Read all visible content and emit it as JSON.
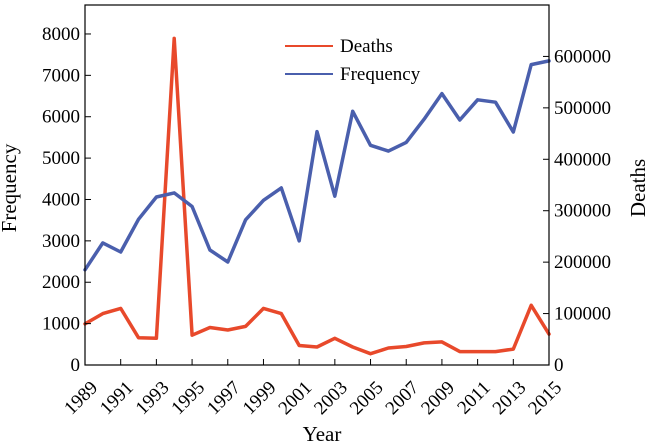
{
  "chart_data": {
    "type": "line",
    "xlabel": "Year",
    "ylabel_left": "Frequency",
    "ylabel_right": "Deaths",
    "x": [
      1989,
      1990,
      1991,
      1992,
      1993,
      1994,
      1995,
      1996,
      1997,
      1998,
      1999,
      2000,
      2001,
      2002,
      2003,
      2004,
      2005,
      2006,
      2007,
      2008,
      2009,
      2010,
      2011,
      2012,
      2013,
      2014,
      2015
    ],
    "x_ticks": [
      "1989",
      "1991",
      "1993",
      "1995",
      "1997",
      "1999",
      "2001",
      "2003",
      "2005",
      "2007",
      "2009",
      "2011",
      "2013",
      "2015"
    ],
    "xlim": [
      1989,
      2015
    ],
    "ylim_left": [
      0,
      8700
    ],
    "ylim_right": [
      0,
      700000
    ],
    "yticks_left": [
      "0",
      "1000",
      "2000",
      "3000",
      "4000",
      "5000",
      "6000",
      "7000",
      "8000"
    ],
    "yticks_right": [
      "0",
      "100000",
      "200000",
      "300000",
      "400000",
      "500000",
      "600000"
    ],
    "series": [
      {
        "name": "Deaths",
        "axis": "right",
        "color": "#e8492b",
        "values": [
          80000,
          100000,
          110000,
          53000,
          52000,
          635000,
          58000,
          73000,
          68000,
          75000,
          110000,
          100000,
          38000,
          35000,
          52000,
          35000,
          22000,
          33000,
          36000,
          43000,
          45000,
          26000,
          26000,
          26000,
          31000,
          116000,
          60000
        ]
      },
      {
        "name": "Frequency",
        "axis": "left",
        "color": "#4a5fad",
        "values": [
          2300,
          2950,
          2730,
          3520,
          4060,
          4160,
          3830,
          2780,
          2490,
          3510,
          3980,
          4280,
          3000,
          5640,
          4080,
          6130,
          5310,
          5170,
          5380,
          5940,
          6560,
          5920,
          6410,
          6350,
          5630,
          7260,
          7350
        ]
      }
    ],
    "legend_position": "top-center",
    "grid": false
  }
}
